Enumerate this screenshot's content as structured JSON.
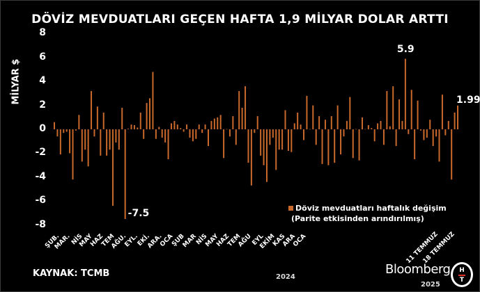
{
  "title": "DÖVİZ MEVDUATLARI GEÇEN HAFTA 1,9 MİLYAR DOLAR ARTTI",
  "source": "KAYNAK: TCMB",
  "branding": {
    "bloomberg": "Bloomberg",
    "ht_logo": "HT"
  },
  "colors": {
    "bar": "#c9692b",
    "background": "#000000",
    "text": "#ffffff"
  },
  "chart_data": {
    "type": "bar",
    "title": "DÖVİZ MEVDUATLARI GEÇEN HAFTA 1,9 MİLYAR DOLAR ARTTI",
    "ylabel": "MİLYAR $",
    "xlabel": "",
    "ylim": [
      -8,
      8
    ],
    "yticks": [
      "8",
      "6",
      "4",
      "2",
      "0",
      "-2",
      "-4",
      "-6",
      "-8"
    ],
    "ytick_values": [
      8,
      6,
      4,
      2,
      0,
      -2,
      -4,
      -6,
      -8
    ],
    "xtick_labels": [
      "ŞUB.",
      "MAR.",
      "NİS",
      "MAY",
      "HAZ",
      "TEM",
      "AĞU.",
      "EYL.",
      "EKİ.",
      "ARA.",
      "OCA",
      "ŞUB",
      "MAR",
      "NİS",
      "MAY",
      "HAZ",
      "TEM",
      "AĞU",
      "EYL",
      "EKİM",
      "KAS",
      "ARA",
      "OCA",
      "11 TEMMUZ",
      "18 TEMMUZ"
    ],
    "year_labels": [
      "2024",
      "2025"
    ],
    "legend": [
      "Döviz mevduatları haftalık değişim",
      "(Parite etkisinden arındırılmış)"
    ],
    "legend_position": "bottom-right",
    "annotations": [
      {
        "text": "-7.5",
        "index": 23
      },
      {
        "text": "5.9",
        "index": 114
      },
      {
        "text": "1.99",
        "index": 131
      }
    ],
    "grid": false,
    "series": [
      {
        "name": "Döviz mevduatları haftalık değişim",
        "values": [
          0.6,
          -0.6,
          -2.1,
          -0.3,
          -0.2,
          -2.0,
          -4.2,
          -0.1,
          1.2,
          -2.7,
          -1.7,
          -3.1,
          3.2,
          -0.6,
          1.9,
          -2.2,
          1.4,
          -2.2,
          -1.7,
          -6.4,
          -1.1,
          -1.7,
          1.8,
          -7.5,
          0.05,
          0.4,
          0.35,
          0.15,
          1.4,
          -0.8,
          2.2,
          2.6,
          4.8,
          -0.8,
          0.2,
          -0.7,
          -1.1,
          -2.5,
          0.5,
          0.7,
          0.4,
          0.1,
          -0.2,
          0.4,
          -0.7,
          -1.0,
          -0.8,
          0.4,
          -0.3,
          0.4,
          -1.4,
          0.7,
          0.9,
          1.0,
          1.2,
          -2.4,
          0.02,
          -0.6,
          1.1,
          -1.3,
          3.2,
          1.8,
          3.6,
          -2.8,
          -4.7,
          -0.3,
          1.1,
          -2.2,
          -3.0,
          -4.4,
          -1.3,
          -0.7,
          -3.4,
          -1.7,
          -1.7,
          1.6,
          -1.8,
          -1.9,
          0.5,
          1.4,
          0.4,
          -0.9,
          2.8,
          0.02,
          2.0,
          -1.3,
          1.1,
          -2.9,
          0.8,
          -3.0,
          1.1,
          -2.8,
          2.0,
          -2.1,
          -0.6,
          0.7,
          2.7,
          -2.4,
          0.02,
          -2.6,
          1.0,
          0.02,
          0.35,
          0.1,
          -1.0,
          0.5,
          0.7,
          -1.3,
          3.2,
          0.25,
          3.6,
          -1.4,
          2.5,
          0.7,
          5.9,
          -0.4,
          3.3,
          -2.5,
          2.4,
          -0.1,
          -0.9,
          -0.7,
          0.8,
          -1.4,
          -0.6,
          -2.7,
          2.9,
          -0.5,
          0.7,
          -4.2,
          1.4,
          1.99
        ]
      }
    ]
  }
}
